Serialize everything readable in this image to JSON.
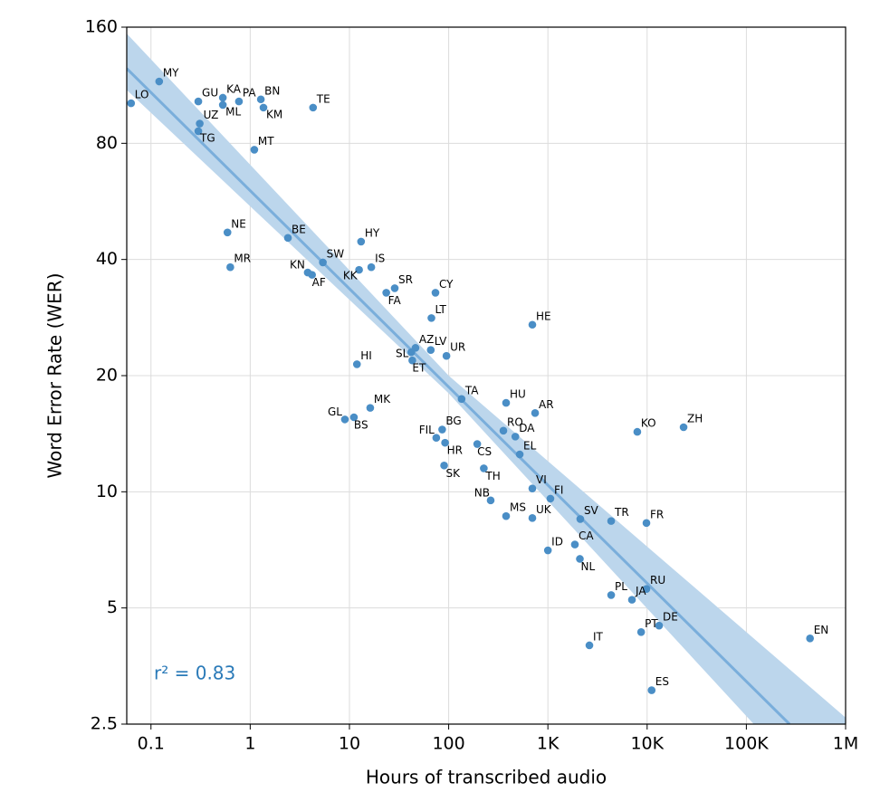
{
  "chart_data": {
    "type": "scatter",
    "x_label": "Hours of transcribed audio",
    "y_label": "Word Error Rate (WER)",
    "xscale": "log",
    "yscale": "log",
    "grid": true,
    "color": "#4a8ec6",
    "xlim": [
      0.057,
      1000000
    ],
    "ylim": [
      2.5,
      160
    ],
    "xticks": [
      0.1,
      1,
      10,
      100,
      {
        "value": 1000,
        "label": "1K"
      },
      {
        "value": 10000,
        "label": "10K"
      },
      {
        "value": 100000,
        "label": "100K"
      },
      {
        "value": 1000000,
        "label": "1M"
      }
    ],
    "yticks": [
      2.5,
      5,
      10,
      20,
      40,
      80,
      160
    ],
    "annotation": "r² = 0.83",
    "trendline": {
      "color": "#7aaedb",
      "x": [
        0.057,
        272000
      ],
      "y": [
        125,
        2.5
      ]
    },
    "band": {
      "color": "#bcd6ec",
      "x": [
        0.057,
        100,
        1000000
      ],
      "lower": [
        110,
        18,
        1.38
      ],
      "upper": [
        154,
        20,
        2.6
      ]
    },
    "labels": [
      "LO",
      "MY",
      "GU",
      "KA",
      "ML",
      "PA",
      "BN",
      "KM",
      "TE",
      "UZ",
      "TG",
      "MT",
      "NE",
      "MR",
      "BE",
      "HY",
      "SW",
      "KN",
      "AF",
      "KK",
      "IS",
      "SR",
      "FA",
      "CY",
      "LT",
      "HE",
      "AZ",
      "LV",
      "SL",
      "ET",
      "UR",
      "HI",
      "TA",
      "HU",
      "AR",
      "MK",
      "GL",
      "BS",
      "KO",
      "ZH",
      "FIL",
      "BG",
      "HR",
      "RO",
      "DA",
      "CS",
      "EL",
      "SK",
      "TH",
      "VI",
      "FI",
      "NB",
      "MS",
      "UK",
      "SV",
      "TR",
      "FR",
      "CA",
      "ID",
      "NL",
      "RU",
      "JA",
      "PL",
      "PT",
      "DE",
      "IT",
      "ES",
      "EN"
    ],
    "x": [
      0.063,
      0.121,
      0.3,
      0.53,
      0.53,
      0.77,
      1.28,
      1.36,
      4.3,
      0.31,
      0.3,
      1.1,
      0.59,
      0.63,
      2.4,
      13.1,
      5.4,
      3.8,
      4.2,
      12.5,
      16.6,
      28.6,
      23.5,
      73.6,
      67,
      697,
      46.3,
      66,
      42,
      43,
      95,
      11.9,
      135,
      379,
      743,
      16.2,
      9.0,
      11.1,
      7960,
      23300,
      75,
      86,
      92,
      356,
      470,
      194,
      520,
      90,
      226,
      697,
      1060,
      265,
      379,
      697,
      2120,
      4340,
      9840,
      1870,
      1000,
      2100,
      9840,
      7030,
      4340,
      8700,
      13200,
      2620,
      11100,
      438000
    ],
    "y": [
      101.6,
      115.7,
      102.7,
      105,
      100.6,
      102.7,
      104,
      99,
      99,
      90,
      86,
      77,
      47,
      38.2,
      45.5,
      44.5,
      39.3,
      37,
      36.5,
      37.6,
      38.2,
      33.7,
      32.8,
      32.8,
      28.2,
      27.1,
      23.6,
      23.3,
      23.0,
      21.9,
      22.5,
      21.4,
      17.4,
      17.0,
      16.0,
      16.5,
      15.4,
      15.6,
      14.3,
      14.7,
      13.8,
      14.5,
      13.4,
      14.4,
      13.9,
      13.3,
      12.5,
      11.7,
      11.5,
      10.2,
      9.6,
      9.5,
      8.65,
      8.55,
      8.5,
      8.4,
      8.3,
      7.3,
      7.05,
      6.7,
      5.6,
      5.25,
      5.4,
      4.33,
      4.5,
      4.0,
      3.06,
      4.17
    ]
  }
}
